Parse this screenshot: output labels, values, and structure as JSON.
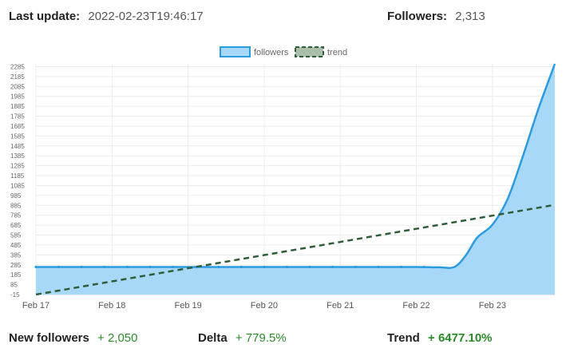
{
  "header": {
    "last_update_label": "Last update:",
    "last_update_value": "2022-02-23T19:46:17",
    "followers_label": "Followers:",
    "followers_value": "2,313"
  },
  "footer": {
    "new_followers_label": "New followers",
    "new_followers_value": "+ 2,050",
    "delta_label": "Delta",
    "delta_value": "+ 779.5%",
    "trend_label": "Trend",
    "trend_value": "+ 6477.10%"
  },
  "colors": {
    "followers_line": "#2b9be0",
    "followers_fill": "#a8d8f8",
    "trend_line": "#2f5d3a",
    "trend_fill": "#a9bfa9",
    "positive": "#2a8a2a"
  },
  "chart_data": {
    "type": "line",
    "legend": {
      "position": "top",
      "entries": [
        "followers",
        "trend"
      ]
    },
    "x_tick_labels": [
      "Feb 17",
      "Feb 18",
      "Feb 19",
      "Feb 20",
      "Feb 21",
      "Feb 22",
      "Feb 23"
    ],
    "y_ticks": [
      -15,
      85,
      185,
      285,
      385,
      485,
      585,
      685,
      785,
      885,
      985,
      1085,
      1185,
      1285,
      1385,
      1485,
      1585,
      1685,
      1785,
      1885,
      1985,
      2085,
      2185,
      2285
    ],
    "ylim": [
      -15,
      2313
    ],
    "xlim": [
      0,
      6.82
    ],
    "grid": true,
    "series": [
      {
        "name": "followers",
        "type": "area",
        "x": [
          0,
          0.5,
          1,
          1.5,
          2,
          2.5,
          3,
          3.5,
          4,
          4.5,
          5,
          5.3,
          5.5,
          5.65,
          5.8,
          6.0,
          6.2,
          6.4,
          6.6,
          6.82
        ],
        "y": [
          263,
          263,
          263,
          263,
          263,
          263,
          263,
          263,
          263,
          263,
          263,
          260,
          263,
          380,
          560,
          690,
          950,
          1380,
          1850,
          2313
        ],
        "markers_x": [
          0,
          0.3,
          0.6,
          0.9,
          1.2,
          1.5,
          1.8,
          2.1,
          2.4,
          2.7,
          3.0,
          3.3,
          3.6,
          3.9,
          4.2,
          4.5,
          4.8,
          5.1
        ]
      },
      {
        "name": "trend",
        "type": "line",
        "dashed": true,
        "x": [
          0,
          6.82
        ],
        "y": [
          -15,
          890
        ]
      }
    ]
  }
}
